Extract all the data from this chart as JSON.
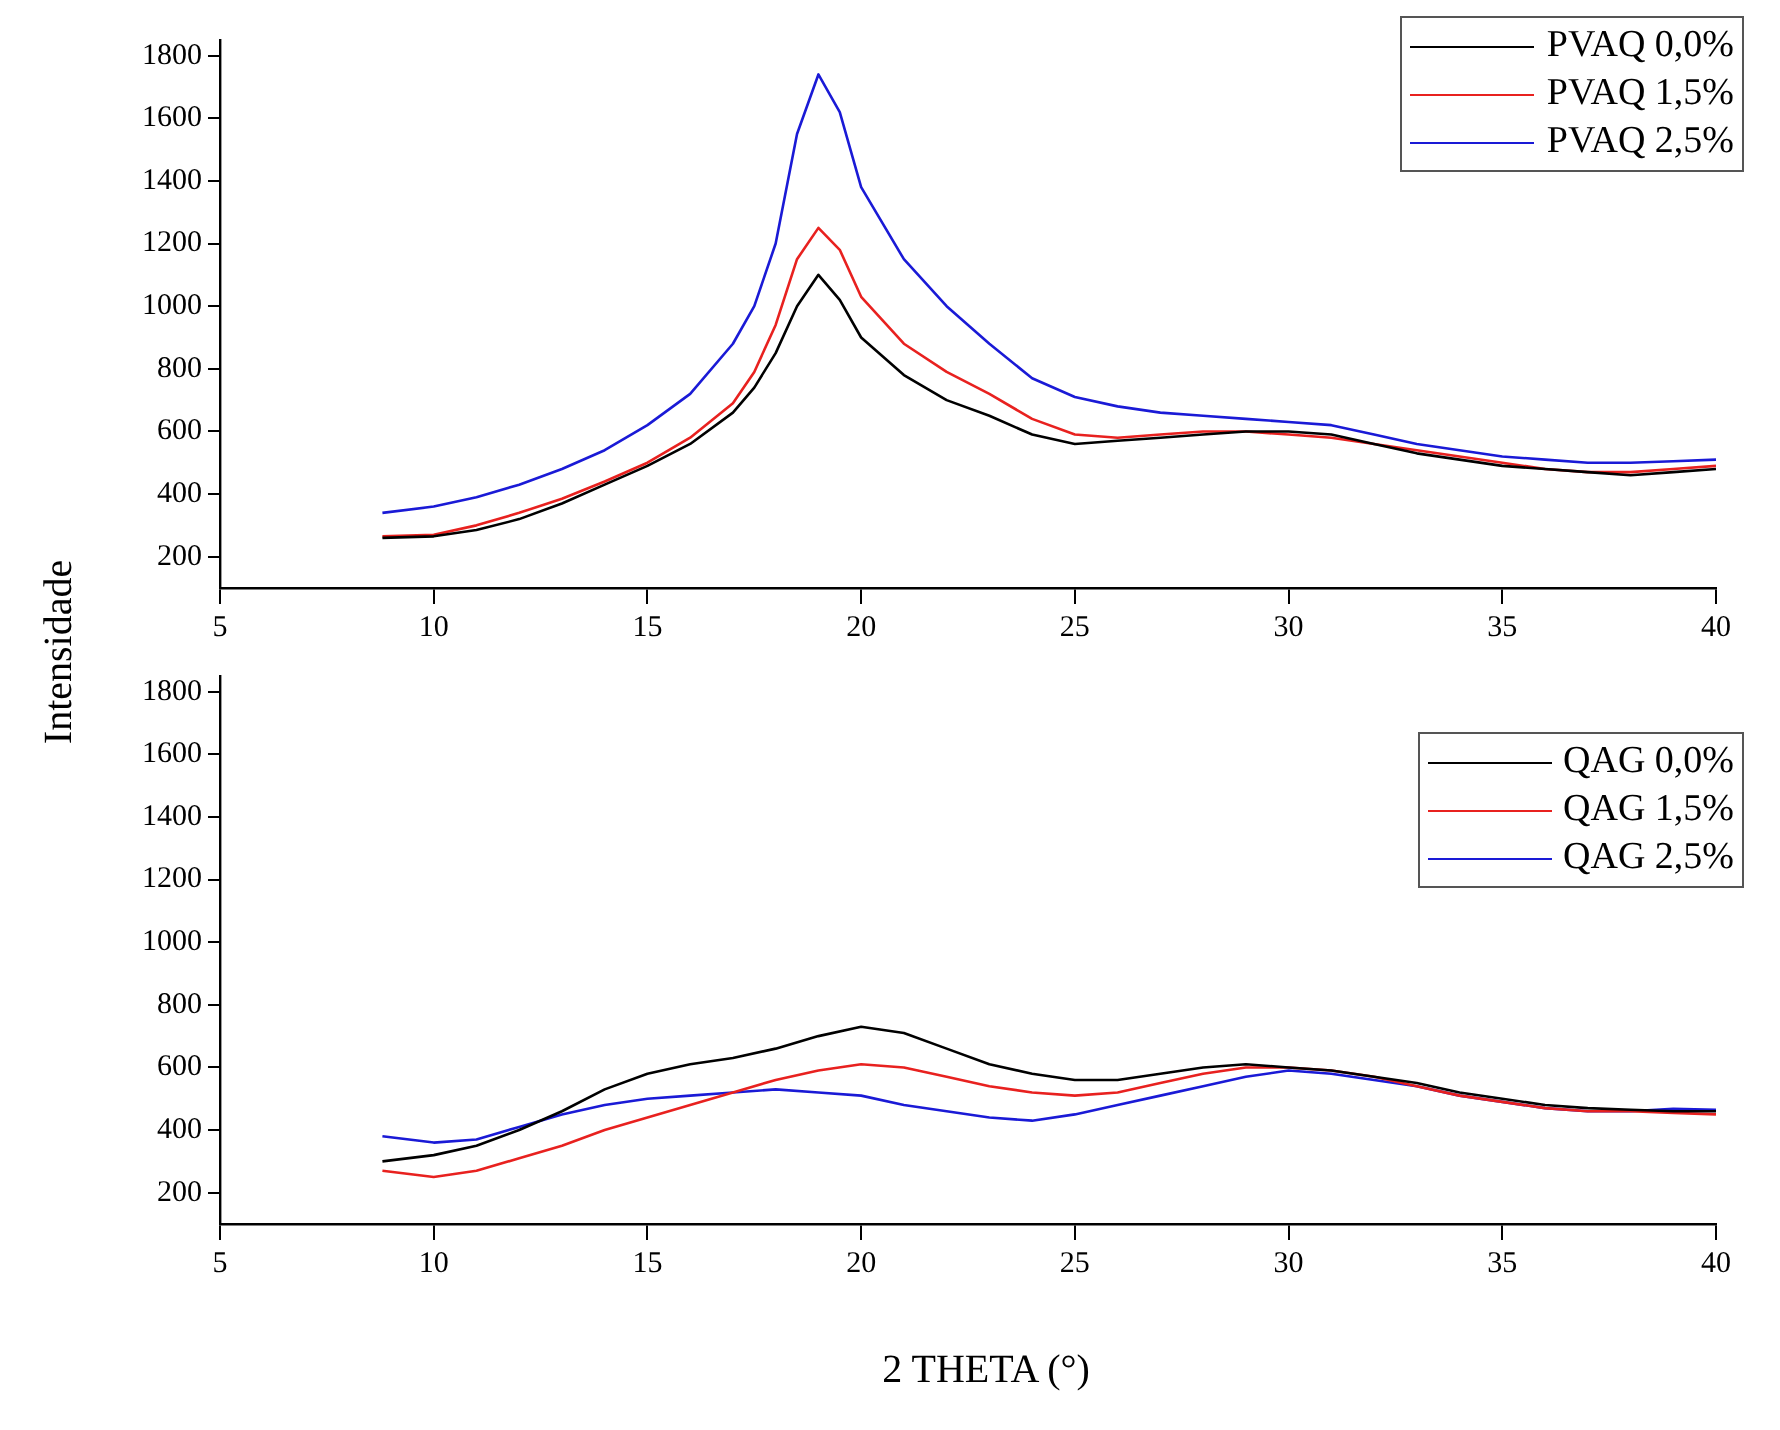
{
  "chart_data": [
    {
      "type": "line",
      "ylabel": "Intensidade",
      "x": [
        8.8,
        10,
        11,
        12,
        13,
        14,
        15,
        16,
        17,
        17.5,
        18,
        18.5,
        19,
        19.5,
        20,
        21,
        22,
        23,
        24,
        25,
        26,
        27,
        28,
        29,
        30,
        31,
        32,
        33,
        34,
        35,
        36,
        37,
        38,
        39,
        40
      ],
      "series": [
        {
          "name": "PVAQ 0,0%",
          "color": "#000000",
          "values": [
            260,
            265,
            285,
            320,
            370,
            430,
            490,
            560,
            660,
            740,
            850,
            1000,
            1100,
            1020,
            900,
            780,
            700,
            650,
            590,
            560,
            570,
            580,
            590,
            600,
            600,
            590,
            560,
            530,
            510,
            490,
            480,
            470,
            460,
            470,
            480
          ]
        },
        {
          "name": "PVAQ 1,5%",
          "color": "#e8211f",
          "values": [
            265,
            270,
            300,
            340,
            385,
            440,
            500,
            580,
            690,
            790,
            940,
            1150,
            1250,
            1180,
            1030,
            880,
            790,
            720,
            640,
            590,
            580,
            590,
            600,
            600,
            590,
            580,
            560,
            540,
            520,
            500,
            480,
            470,
            470,
            480,
            490
          ]
        },
        {
          "name": "PVAQ 2,5%",
          "color": "#1a1ad6",
          "values": [
            340,
            360,
            390,
            430,
            480,
            540,
            620,
            720,
            880,
            1000,
            1200,
            1550,
            1740,
            1620,
            1380,
            1150,
            1000,
            880,
            770,
            710,
            680,
            660,
            650,
            640,
            630,
            620,
            590,
            560,
            540,
            520,
            510,
            500,
            500,
            505,
            510
          ]
        }
      ],
      "xlim": [
        5,
        40
      ],
      "xticks": [
        5,
        10,
        15,
        20,
        25,
        30,
        35,
        40
      ],
      "ylim": [
        100,
        1850
      ],
      "yticks": [
        200,
        400,
        600,
        800,
        1000,
        1200,
        1400,
        1600,
        1800
      ],
      "grid": false,
      "legend": "top right",
      "marker": "none",
      "line_style": "solid"
    },
    {
      "type": "line",
      "xlabel": "2 THETA (°)",
      "x": [
        8.8,
        10,
        11,
        12,
        13,
        14,
        15,
        16,
        17,
        18,
        19,
        20,
        21,
        22,
        23,
        24,
        25,
        26,
        27,
        28,
        29,
        30,
        31,
        32,
        33,
        34,
        35,
        36,
        37,
        38,
        39,
        40
      ],
      "series": [
        {
          "name": "QAG 0,0%",
          "color": "#000000",
          "values": [
            300,
            320,
            350,
            400,
            460,
            530,
            580,
            610,
            630,
            660,
            700,
            730,
            710,
            660,
            610,
            580,
            560,
            560,
            580,
            600,
            610,
            600,
            590,
            570,
            550,
            520,
            500,
            480,
            470,
            465,
            460,
            460
          ]
        },
        {
          "name": "QAG 1,5%",
          "color": "#e8211f",
          "values": [
            270,
            250,
            270,
            310,
            350,
            400,
            440,
            480,
            520,
            560,
            590,
            610,
            600,
            570,
            540,
            520,
            510,
            520,
            550,
            580,
            600,
            600,
            590,
            570,
            540,
            510,
            490,
            470,
            460,
            460,
            455,
            450
          ]
        },
        {
          "name": "QAG 2,5%",
          "color": "#1a1ad6",
          "values": [
            380,
            360,
            370,
            410,
            450,
            480,
            500,
            510,
            520,
            530,
            520,
            510,
            480,
            460,
            440,
            430,
            450,
            480,
            510,
            540,
            570,
            590,
            580,
            560,
            540,
            510,
            490,
            470,
            460,
            460,
            468,
            465
          ]
        }
      ],
      "xlim": [
        5,
        40
      ],
      "xticks": [
        5,
        10,
        15,
        20,
        25,
        30,
        35,
        40
      ],
      "ylim": [
        100,
        1850
      ],
      "yticks": [
        200,
        400,
        600,
        800,
        1000,
        1200,
        1400,
        1600,
        1800
      ],
      "grid": false,
      "legend": "top right",
      "marker": "none",
      "line_style": "solid"
    }
  ]
}
